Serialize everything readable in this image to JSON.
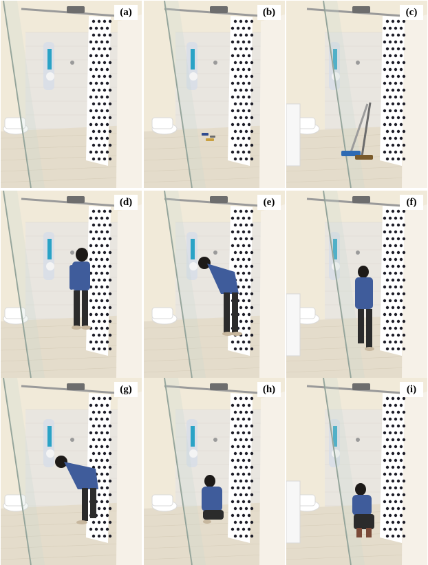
{
  "figure": {
    "panels": [
      {
        "label": "(a)",
        "person": "none",
        "objects": "none"
      },
      {
        "label": "(b)",
        "person": "none",
        "objects": "small items on floor"
      },
      {
        "label": "(c)",
        "person": "none",
        "objects": "mop and broom"
      },
      {
        "label": "(d)",
        "person": "standing",
        "objects": "none"
      },
      {
        "label": "(e)",
        "person": "bending",
        "objects": "none"
      },
      {
        "label": "(f)",
        "person": "walking",
        "objects": "none"
      },
      {
        "label": "(g)",
        "person": "bending-low",
        "objects": "none"
      },
      {
        "label": "(h)",
        "person": "crouching",
        "objects": "none"
      },
      {
        "label": "(i)",
        "person": "kneeling",
        "objects": "none"
      }
    ]
  },
  "colors": {
    "wall": "#f1ead9",
    "tile": "#e9e6e0",
    "floor": "#e4dccb",
    "glass": "#c9d8cf",
    "curtain": "#ffffff",
    "curtain_pattern": "#1d1d28",
    "shirt": "#3f5c9b",
    "pants": "#2b2b2b"
  }
}
